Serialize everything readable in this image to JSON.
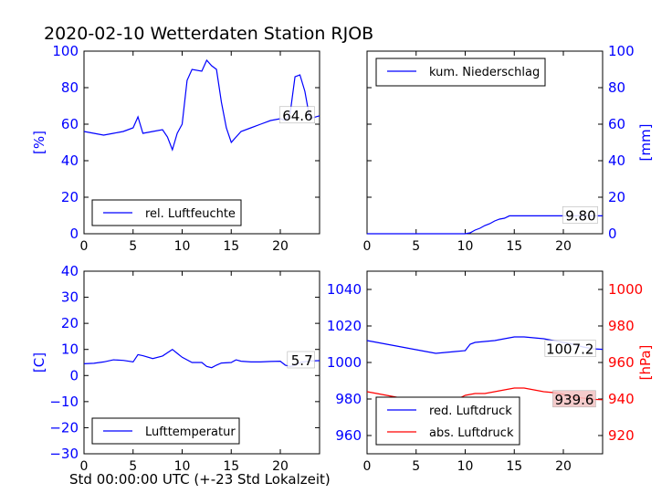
{
  "title": "2020-02-10 Wetterdaten Station RJOB",
  "footer_label": "Std 00:00:00 UTC (+-23 Std Lokalzeit)",
  "colors": {
    "primary": "#0000ff",
    "secondary": "#ff0000",
    "axis": "#000000"
  },
  "chart_data": [
    {
      "id": "humidity",
      "type": "line",
      "ylabel": "[%]",
      "ylabel_side": "left",
      "ylim": [
        0,
        100
      ],
      "yticks": [
        0,
        20,
        40,
        60,
        80,
        100
      ],
      "xlim": [
        0,
        24
      ],
      "xticks": [
        0,
        5,
        10,
        15,
        20
      ],
      "legend": "bottom-left",
      "series": [
        {
          "name": "rel. Luftfeuchte",
          "color": "#0000ff",
          "x": [
            0,
            1,
            2,
            3,
            4,
            5,
            5.5,
            6,
            7,
            8,
            8.5,
            9,
            9.5,
            10,
            10.5,
            11,
            12,
            12.5,
            13,
            13.5,
            14,
            14.5,
            15,
            15.5,
            16,
            17,
            18,
            19,
            20,
            20.5,
            21,
            21.5,
            22,
            22.5,
            23,
            24
          ],
          "y": [
            56,
            55,
            54,
            55,
            56,
            58,
            64,
            55,
            56,
            57,
            53,
            46,
            55,
            60,
            84,
            90,
            89,
            95,
            92,
            90,
            72,
            58,
            50,
            53,
            56,
            58,
            60,
            62,
            63,
            62,
            66,
            86,
            87,
            78,
            63,
            64.6
          ]
        }
      ],
      "annotation": "64.6",
      "annotation_at": [
        23.5,
        64.6
      ]
    },
    {
      "id": "precip",
      "type": "line",
      "ylabel": "[mm]",
      "ylabel_side": "right",
      "ylim": [
        0,
        100
      ],
      "yticks": [
        0,
        20,
        40,
        60,
        80,
        100
      ],
      "xlim": [
        0,
        24
      ],
      "xticks": [
        0,
        5,
        10,
        15,
        20
      ],
      "legend": "top-left",
      "series": [
        {
          "name": "kum. Niederschlag",
          "color": "#0000ff",
          "x": [
            0,
            10,
            10.5,
            11,
            11.5,
            12,
            12.5,
            13,
            13.5,
            14,
            14.5,
            24
          ],
          "y": [
            0,
            0,
            0.5,
            2,
            3,
            4.5,
            5.5,
            7,
            8,
            8.5,
            9.8,
            9.8
          ]
        }
      ],
      "annotation": "9.80",
      "annotation_at": [
        23.5,
        9.8
      ]
    },
    {
      "id": "temperature",
      "type": "line",
      "ylabel": "[C]",
      "ylabel_side": "left",
      "ylim": [
        -30,
        40
      ],
      "yticks": [
        -30,
        -20,
        -10,
        0,
        10,
        20,
        30,
        40
      ],
      "xlim": [
        0,
        24
      ],
      "xticks": [
        0,
        5,
        10,
        15,
        20
      ],
      "legend": "bottom-left",
      "series": [
        {
          "name": "Lufttemperatur",
          "color": "#0000ff",
          "x": [
            0,
            1,
            2,
            3,
            4,
            5,
            5.5,
            6,
            7,
            8,
            9,
            9.5,
            10,
            11,
            12,
            12.5,
            13,
            13.5,
            14,
            15,
            15.5,
            16,
            17,
            18,
            19,
            20,
            20.5,
            21,
            21.5,
            22,
            23,
            24
          ],
          "y": [
            4.5,
            4.7,
            5.2,
            6,
            5.8,
            5.2,
            8,
            7.6,
            6.5,
            7.5,
            10,
            8.5,
            7,
            5,
            5,
            3.5,
            3,
            4,
            4.8,
            5,
            6,
            5.5,
            5.2,
            5.2,
            5.4,
            5.5,
            4,
            3.5,
            3.8,
            5,
            5.6,
            5.7
          ]
        }
      ],
      "annotation": "5.7",
      "annotation_at": [
        23.5,
        5.7
      ]
    },
    {
      "id": "pressure",
      "type": "line",
      "ylabel": "[hPa]",
      "ylabel_side": "right",
      "ylim": [
        950,
        1050
      ],
      "yticks": [
        960,
        980,
        1000,
        1020,
        1040
      ],
      "y2lim": [
        910,
        1010
      ],
      "y2ticks": [
        920,
        940,
        960,
        980,
        1000
      ],
      "xlim": [
        0,
        24
      ],
      "xticks": [
        0,
        5,
        10,
        15,
        20
      ],
      "legend": "bottom-left",
      "series": [
        {
          "name": "red. Luftdruck",
          "color": "#0000ff",
          "axis": "left",
          "x": [
            0,
            1,
            2,
            3,
            4,
            5,
            6,
            7,
            8,
            9,
            10,
            10.5,
            11,
            12,
            13,
            14,
            15,
            16,
            17,
            18,
            19,
            20,
            21,
            22,
            23,
            24
          ],
          "y": [
            1012,
            1011,
            1010,
            1009,
            1008,
            1007,
            1006,
            1005,
            1005.5,
            1006,
            1006.5,
            1010,
            1011,
            1011.5,
            1012,
            1013,
            1014,
            1014,
            1013.5,
            1013,
            1012,
            1011,
            1010,
            1008.5,
            1007.5,
            1007.2
          ]
        },
        {
          "name": "abs. Luftdruck",
          "color": "#ff0000",
          "axis": "right",
          "x": [
            0,
            1,
            2,
            3,
            4,
            5,
            6,
            7,
            8,
            9,
            10,
            11,
            12,
            13,
            14,
            15,
            16,
            17,
            18,
            19,
            20,
            21,
            22,
            23,
            24
          ],
          "y": [
            944,
            943,
            942,
            941,
            940,
            939,
            938,
            938,
            938.5,
            939.5,
            942,
            943,
            943,
            944,
            945,
            946,
            946,
            945,
            944,
            943.5,
            942.5,
            941,
            940.5,
            939.8,
            939.6
          ]
        }
      ],
      "annotation": "1007.2",
      "annotation_at": [
        23.3,
        1007.2
      ],
      "annotation2": "939.6",
      "annotation2_at": [
        23.3,
        939.6
      ]
    }
  ]
}
